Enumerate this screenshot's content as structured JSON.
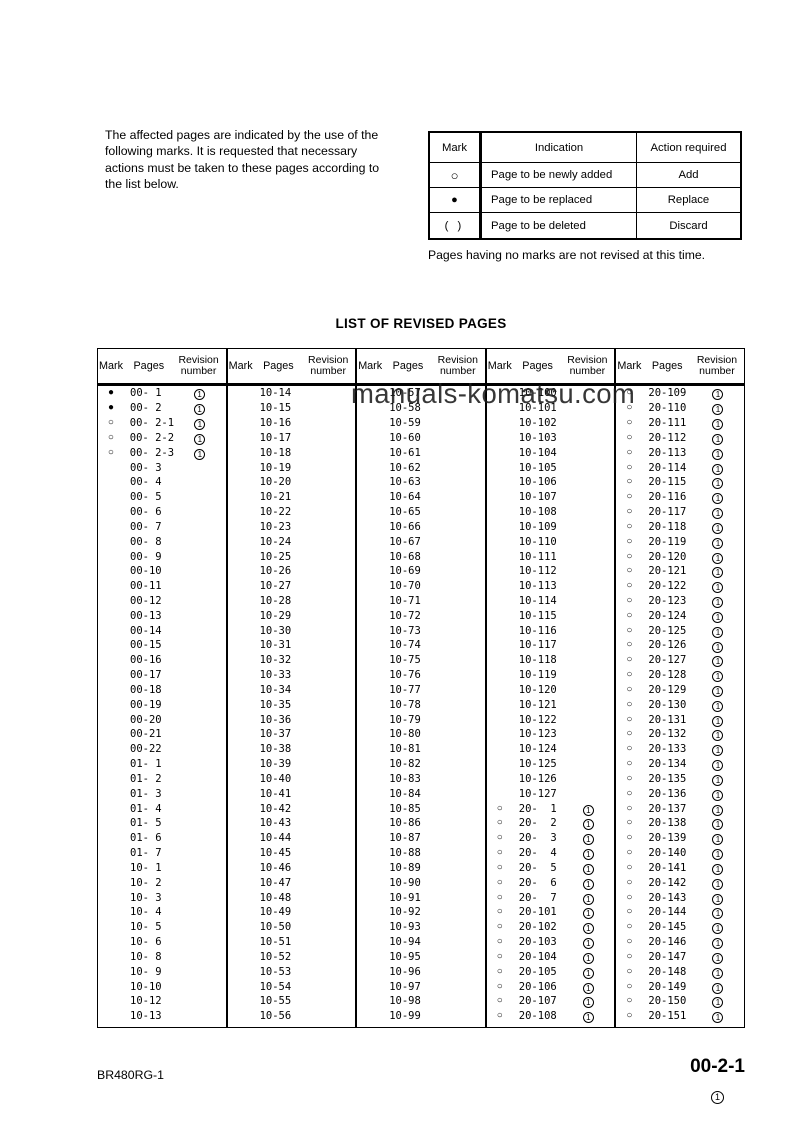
{
  "intro": {
    "lines": [
      "The affected pages are indicated by the use of the",
      "following marks. It is requested that necessary",
      "actions must be taken to these pages according to",
      "the list below."
    ]
  },
  "mark_table": {
    "headers": {
      "mark": "Mark",
      "indication": "Indication",
      "action": "Action required"
    },
    "rows": [
      {
        "mark": "○",
        "indication": "Page to be newly added",
        "action": "Add"
      },
      {
        "mark": "●",
        "indication": "Page to be replaced",
        "action": "Replace"
      },
      {
        "mark": "(  )",
        "indication": "Page to be deleted",
        "action": "Discard"
      }
    ]
  },
  "note": "Pages having no marks are not revised at this time.",
  "list_title": "LIST OF REVISED PAGES",
  "watermark": "manuals-komatsu.com",
  "revised_table": {
    "group_headers": {
      "mark": "Mark",
      "pages": "Pages",
      "revision": "Revision number"
    },
    "groups": [
      [
        [
          "●",
          "00- 1",
          "1"
        ],
        [
          "●",
          "00- 2",
          "1"
        ],
        [
          "○",
          "00- 2-1",
          "1"
        ],
        [
          "○",
          "00- 2-2",
          "1"
        ],
        [
          "○",
          "00- 2-3",
          "1"
        ],
        [
          "",
          "00- 3",
          ""
        ],
        [
          "",
          "00- 4",
          ""
        ],
        [
          "",
          "00- 5",
          ""
        ],
        [
          "",
          "00- 6",
          ""
        ],
        [
          "",
          "00- 7",
          ""
        ],
        [
          "",
          "00- 8",
          ""
        ],
        [
          "",
          "00- 9",
          ""
        ],
        [
          "",
          "00-10",
          ""
        ],
        [
          "",
          "00-11",
          ""
        ],
        [
          "",
          "00-12",
          ""
        ],
        [
          "",
          "00-13",
          ""
        ],
        [
          "",
          "00-14",
          ""
        ],
        [
          "",
          "00-15",
          ""
        ],
        [
          "",
          "00-16",
          ""
        ],
        [
          "",
          "00-17",
          ""
        ],
        [
          "",
          "00-18",
          ""
        ],
        [
          "",
          "00-19",
          ""
        ],
        [
          "",
          "00-20",
          ""
        ],
        [
          "",
          "00-21",
          ""
        ],
        [
          "",
          "00-22",
          ""
        ],
        [
          "",
          "01- 1",
          ""
        ],
        [
          "",
          "01- 2",
          ""
        ],
        [
          "",
          "01- 3",
          ""
        ],
        [
          "",
          "01- 4",
          ""
        ],
        [
          "",
          "01- 5",
          ""
        ],
        [
          "",
          "01- 6",
          ""
        ],
        [
          "",
          "01- 7",
          ""
        ],
        [
          "",
          "10- 1",
          ""
        ],
        [
          "",
          "10- 2",
          ""
        ],
        [
          "",
          "10- 3",
          ""
        ],
        [
          "",
          "10- 4",
          ""
        ],
        [
          "",
          "10- 5",
          ""
        ],
        [
          "",
          "10- 6",
          ""
        ],
        [
          "",
          "10- 8",
          ""
        ],
        [
          "",
          "10- 9",
          ""
        ],
        [
          "",
          "10-10",
          ""
        ],
        [
          "",
          "10-12",
          ""
        ],
        [
          "",
          "10-13",
          ""
        ]
      ],
      [
        [
          "",
          "10-14",
          ""
        ],
        [
          "",
          "10-15",
          ""
        ],
        [
          "",
          "10-16",
          ""
        ],
        [
          "",
          "10-17",
          ""
        ],
        [
          "",
          "10-18",
          ""
        ],
        [
          "",
          "10-19",
          ""
        ],
        [
          "",
          "10-20",
          ""
        ],
        [
          "",
          "10-21",
          ""
        ],
        [
          "",
          "10-22",
          ""
        ],
        [
          "",
          "10-23",
          ""
        ],
        [
          "",
          "10-24",
          ""
        ],
        [
          "",
          "10-25",
          ""
        ],
        [
          "",
          "10-26",
          ""
        ],
        [
          "",
          "10-27",
          ""
        ],
        [
          "",
          "10-28",
          ""
        ],
        [
          "",
          "10-29",
          ""
        ],
        [
          "",
          "10-30",
          ""
        ],
        [
          "",
          "10-31",
          ""
        ],
        [
          "",
          "10-32",
          ""
        ],
        [
          "",
          "10-33",
          ""
        ],
        [
          "",
          "10-34",
          ""
        ],
        [
          "",
          "10-35",
          ""
        ],
        [
          "",
          "10-36",
          ""
        ],
        [
          "",
          "10-37",
          ""
        ],
        [
          "",
          "10-38",
          ""
        ],
        [
          "",
          "10-39",
          ""
        ],
        [
          "",
          "10-40",
          ""
        ],
        [
          "",
          "10-41",
          ""
        ],
        [
          "",
          "10-42",
          ""
        ],
        [
          "",
          "10-43",
          ""
        ],
        [
          "",
          "10-44",
          ""
        ],
        [
          "",
          "10-45",
          ""
        ],
        [
          "",
          "10-46",
          ""
        ],
        [
          "",
          "10-47",
          ""
        ],
        [
          "",
          "10-48",
          ""
        ],
        [
          "",
          "10-49",
          ""
        ],
        [
          "",
          "10-50",
          ""
        ],
        [
          "",
          "10-51",
          ""
        ],
        [
          "",
          "10-52",
          ""
        ],
        [
          "",
          "10-53",
          ""
        ],
        [
          "",
          "10-54",
          ""
        ],
        [
          "",
          "10-55",
          ""
        ],
        [
          "",
          "10-56",
          ""
        ]
      ],
      [
        [
          "",
          "10-57",
          ""
        ],
        [
          "",
          "10-58",
          ""
        ],
        [
          "",
          "10-59",
          ""
        ],
        [
          "",
          "10-60",
          ""
        ],
        [
          "",
          "10-61",
          ""
        ],
        [
          "",
          "10-62",
          ""
        ],
        [
          "",
          "10-63",
          ""
        ],
        [
          "",
          "10-64",
          ""
        ],
        [
          "",
          "10-65",
          ""
        ],
        [
          "",
          "10-66",
          ""
        ],
        [
          "",
          "10-67",
          ""
        ],
        [
          "",
          "10-68",
          ""
        ],
        [
          "",
          "10-69",
          ""
        ],
        [
          "",
          "10-70",
          ""
        ],
        [
          "",
          "10-71",
          ""
        ],
        [
          "",
          "10-72",
          ""
        ],
        [
          "",
          "10-73",
          ""
        ],
        [
          "",
          "10-74",
          ""
        ],
        [
          "",
          "10-75",
          ""
        ],
        [
          "",
          "10-76",
          ""
        ],
        [
          "",
          "10-77",
          ""
        ],
        [
          "",
          "10-78",
          ""
        ],
        [
          "",
          "10-79",
          ""
        ],
        [
          "",
          "10-80",
          ""
        ],
        [
          "",
          "10-81",
          ""
        ],
        [
          "",
          "10-82",
          ""
        ],
        [
          "",
          "10-83",
          ""
        ],
        [
          "",
          "10-84",
          ""
        ],
        [
          "",
          "10-85",
          ""
        ],
        [
          "",
          "10-86",
          ""
        ],
        [
          "",
          "10-87",
          ""
        ],
        [
          "",
          "10-88",
          ""
        ],
        [
          "",
          "10-89",
          ""
        ],
        [
          "",
          "10-90",
          ""
        ],
        [
          "",
          "10-91",
          ""
        ],
        [
          "",
          "10-92",
          ""
        ],
        [
          "",
          "10-93",
          ""
        ],
        [
          "",
          "10-94",
          ""
        ],
        [
          "",
          "10-95",
          ""
        ],
        [
          "",
          "10-96",
          ""
        ],
        [
          "",
          "10-97",
          ""
        ],
        [
          "",
          "10-98",
          ""
        ],
        [
          "",
          "10-99",
          ""
        ]
      ],
      [
        [
          "",
          "10-100",
          ""
        ],
        [
          "",
          "10-101",
          ""
        ],
        [
          "",
          "10-102",
          ""
        ],
        [
          "",
          "10-103",
          ""
        ],
        [
          "",
          "10-104",
          ""
        ],
        [
          "",
          "10-105",
          ""
        ],
        [
          "",
          "10-106",
          ""
        ],
        [
          "",
          "10-107",
          ""
        ],
        [
          "",
          "10-108",
          ""
        ],
        [
          "",
          "10-109",
          ""
        ],
        [
          "",
          "10-110",
          ""
        ],
        [
          "",
          "10-111",
          ""
        ],
        [
          "",
          "10-112",
          ""
        ],
        [
          "",
          "10-113",
          ""
        ],
        [
          "",
          "10-114",
          ""
        ],
        [
          "",
          "10-115",
          ""
        ],
        [
          "",
          "10-116",
          ""
        ],
        [
          "",
          "10-117",
          ""
        ],
        [
          "",
          "10-118",
          ""
        ],
        [
          "",
          "10-119",
          ""
        ],
        [
          "",
          "10-120",
          ""
        ],
        [
          "",
          "10-121",
          ""
        ],
        [
          "",
          "10-122",
          ""
        ],
        [
          "",
          "10-123",
          ""
        ],
        [
          "",
          "10-124",
          ""
        ],
        [
          "",
          "10-125",
          ""
        ],
        [
          "",
          "10-126",
          ""
        ],
        [
          "",
          "10-127",
          ""
        ],
        [
          "○",
          "20-  1",
          "1"
        ],
        [
          "○",
          "20-  2",
          "1"
        ],
        [
          "○",
          "20-  3",
          "1"
        ],
        [
          "○",
          "20-  4",
          "1"
        ],
        [
          "○",
          "20-  5",
          "1"
        ],
        [
          "○",
          "20-  6",
          "1"
        ],
        [
          "○",
          "20-  7",
          "1"
        ],
        [
          "○",
          "20-101",
          "1"
        ],
        [
          "○",
          "20-102",
          "1"
        ],
        [
          "○",
          "20-103",
          "1"
        ],
        [
          "○",
          "20-104",
          "1"
        ],
        [
          "○",
          "20-105",
          "1"
        ],
        [
          "○",
          "20-106",
          "1"
        ],
        [
          "○",
          "20-107",
          "1"
        ],
        [
          "○",
          "20-108",
          "1"
        ]
      ],
      [
        [
          "○",
          "20-109",
          "1"
        ],
        [
          "○",
          "20-110",
          "1"
        ],
        [
          "○",
          "20-111",
          "1"
        ],
        [
          "○",
          "20-112",
          "1"
        ],
        [
          "○",
          "20-113",
          "1"
        ],
        [
          "○",
          "20-114",
          "1"
        ],
        [
          "○",
          "20-115",
          "1"
        ],
        [
          "○",
          "20-116",
          "1"
        ],
        [
          "○",
          "20-117",
          "1"
        ],
        [
          "○",
          "20-118",
          "1"
        ],
        [
          "○",
          "20-119",
          "1"
        ],
        [
          "○",
          "20-120",
          "1"
        ],
        [
          "○",
          "20-121",
          "1"
        ],
        [
          "○",
          "20-122",
          "1"
        ],
        [
          "○",
          "20-123",
          "1"
        ],
        [
          "○",
          "20-124",
          "1"
        ],
        [
          "○",
          "20-125",
          "1"
        ],
        [
          "○",
          "20-126",
          "1"
        ],
        [
          "○",
          "20-127",
          "1"
        ],
        [
          "○",
          "20-128",
          "1"
        ],
        [
          "○",
          "20-129",
          "1"
        ],
        [
          "○",
          "20-130",
          "1"
        ],
        [
          "○",
          "20-131",
          "1"
        ],
        [
          "○",
          "20-132",
          "1"
        ],
        [
          "○",
          "20-133",
          "1"
        ],
        [
          "○",
          "20-134",
          "1"
        ],
        [
          "○",
          "20-135",
          "1"
        ],
        [
          "○",
          "20-136",
          "1"
        ],
        [
          "○",
          "20-137",
          "1"
        ],
        [
          "○",
          "20-138",
          "1"
        ],
        [
          "○",
          "20-139",
          "1"
        ],
        [
          "○",
          "20-140",
          "1"
        ],
        [
          "○",
          "20-141",
          "1"
        ],
        [
          "○",
          "20-142",
          "1"
        ],
        [
          "○",
          "20-143",
          "1"
        ],
        [
          "○",
          "20-144",
          "1"
        ],
        [
          "○",
          "20-145",
          "1"
        ],
        [
          "○",
          "20-146",
          "1"
        ],
        [
          "○",
          "20-147",
          "1"
        ],
        [
          "○",
          "20-148",
          "1"
        ],
        [
          "○",
          "20-149",
          "1"
        ],
        [
          "○",
          "20-150",
          "1"
        ],
        [
          "○",
          "20-151",
          "1"
        ]
      ]
    ]
  },
  "footer": {
    "left": "BR480RG-1",
    "page": "00-2-1",
    "revision": "1"
  }
}
